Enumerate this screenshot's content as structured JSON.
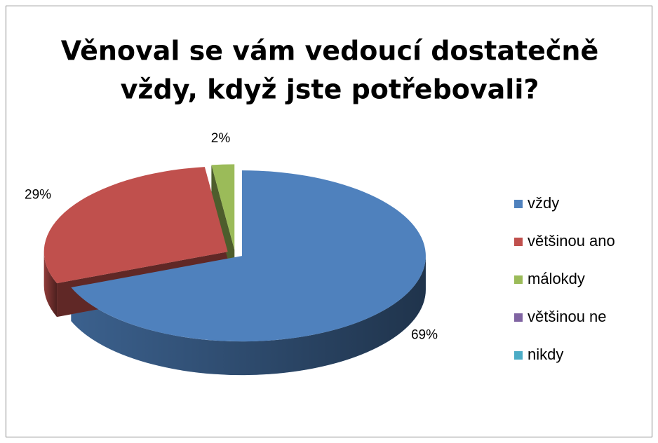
{
  "chart_data": {
    "type": "pie3d",
    "title": [
      "Věnoval se vám vedoucí dostatečně",
      "vždy, když jste potřebovali?"
    ],
    "categories": [
      "vždy",
      "většinou ano",
      "málokdy",
      "většinou ne",
      "nikdy"
    ],
    "values": [
      69,
      29,
      2,
      0,
      0
    ],
    "value_labels": [
      "69%",
      "29%",
      "2%",
      null,
      null
    ],
    "colors": [
      "#4f81bd",
      "#c0504d",
      "#9bbb59",
      "#8064a2",
      "#4bacc6"
    ],
    "legend": "right"
  }
}
